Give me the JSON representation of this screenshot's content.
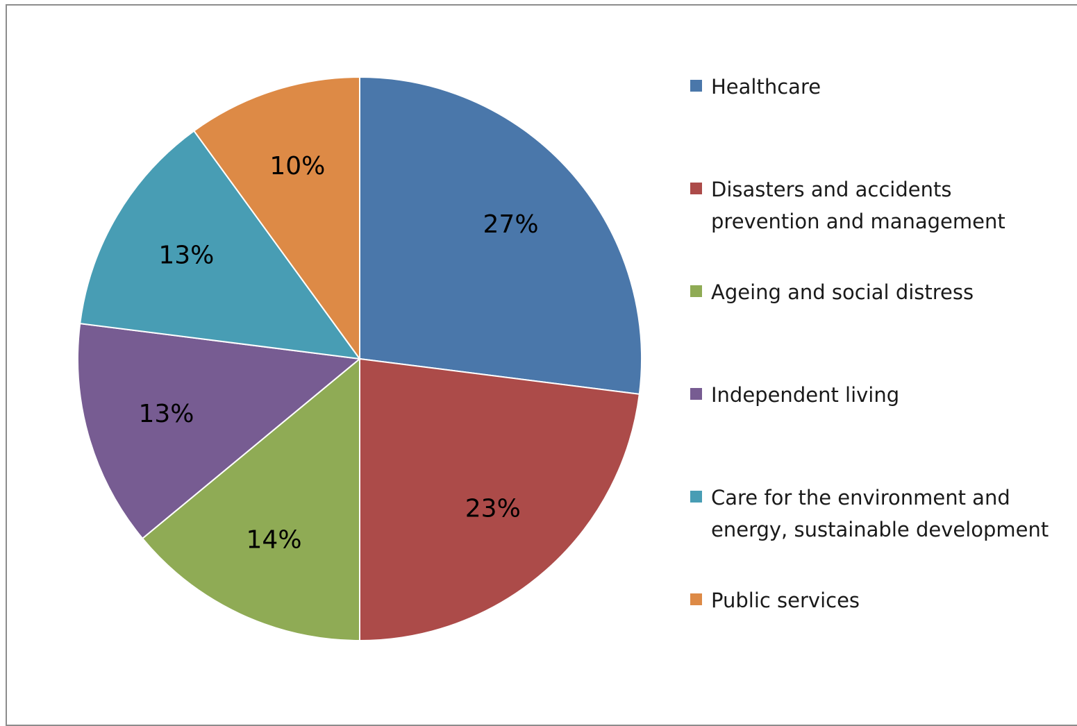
{
  "chart_data": {
    "type": "pie",
    "slices": [
      {
        "name": "Healthcare",
        "value": 27,
        "label": "27%",
        "color": "#4a77aa"
      },
      {
        "name": "Disasters and accidents\nprevention and management",
        "value": 23,
        "label": "23%",
        "color": "#ac4b49"
      },
      {
        "name": "Ageing and social distress",
        "value": 14,
        "label": "14%",
        "color": "#8fab55"
      },
      {
        "name": "Independent living",
        "value": 13,
        "label": "13%",
        "color": "#775c92"
      },
      {
        "name": "Care for the environment and\nenergy, sustainable development",
        "value": 13,
        "label": "13%",
        "color": "#489db4"
      },
      {
        "name": "Public services",
        "value": 10,
        "label": "10%",
        "color": "#dd8a46"
      }
    ],
    "start_angle": "12 o'clock",
    "direction": "clockwise",
    "legend_position": "right"
  }
}
